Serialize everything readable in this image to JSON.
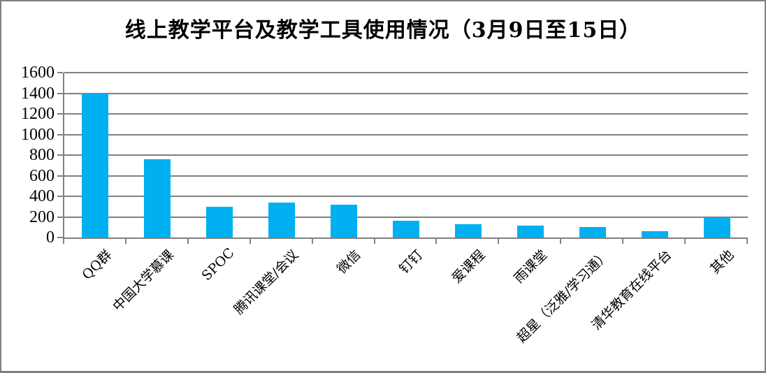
{
  "window": {
    "background": "#FFFFFF",
    "border_color": "#808080"
  },
  "chart_data": {
    "type": "bar",
    "title": "线上教学平台及教学工具使用情况（3月9日至15日）",
    "categories": [
      "QQ群",
      "中国大学慕课",
      "SPOC",
      "腾讯课堂/会议",
      "微信",
      "钉钉",
      "爱课程",
      "雨课堂",
      "超星（泛雅/学习通）",
      "清华教育在线平台",
      "其他"
    ],
    "values": [
      1400,
      760,
      300,
      340,
      320,
      165,
      130,
      115,
      100,
      60,
      200
    ],
    "xlabel": "",
    "ylabel": "",
    "ylim": [
      0,
      1600
    ],
    "ytick_step": 200,
    "y_ticks": [
      0,
      200,
      400,
      600,
      800,
      1000,
      1200,
      1400,
      1600
    ],
    "grid": "horizontal",
    "legend_position": "none",
    "x_label_rotation_deg": 45,
    "bar_color": "#00B0F0",
    "gridline_color": "#808080",
    "axis_color": "#808080",
    "text_color": "#000000"
  }
}
